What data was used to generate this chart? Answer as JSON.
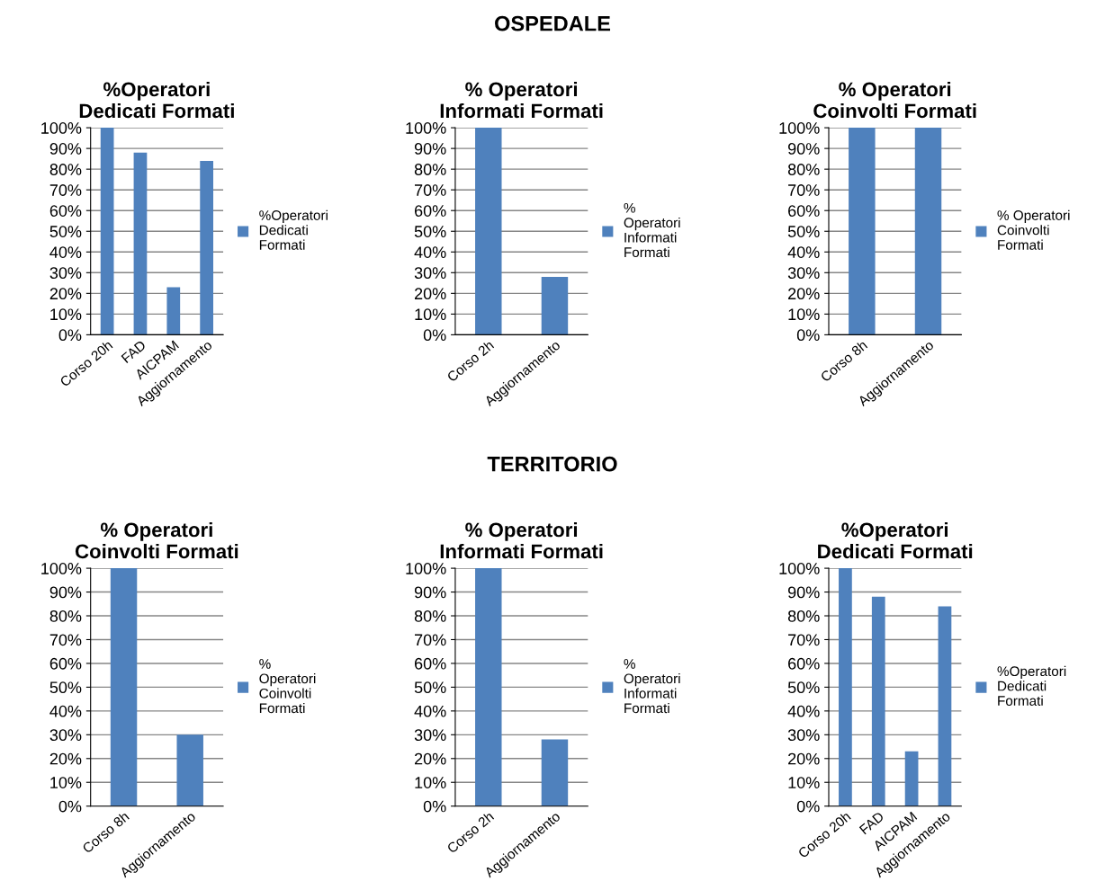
{
  "chart_data": [
    {
      "type": "bar",
      "title": "%Operatori\nDedicati Formati",
      "annotations": [
        "OSPEDALE"
      ],
      "categories": [
        "Corso 20h",
        "FAD",
        "AICPAM",
        "Aggiornamento"
      ],
      "series": [
        {
          "name": "%Operatori\nDedicati\nFormati",
          "color": "#4f81bd",
          "values": [
            100,
            88,
            23,
            84
          ]
        }
      ],
      "ylim": [
        0,
        100
      ],
      "yticks": [
        {
          "value": 0,
          "label": "0%"
        },
        {
          "value": 10,
          "label": "10%"
        },
        {
          "value": 20,
          "label": "20%"
        },
        {
          "value": 30,
          "label": "30%"
        },
        {
          "value": 40,
          "label": "40%"
        },
        {
          "value": 50,
          "label": "50%"
        },
        {
          "value": 60,
          "label": "60%"
        },
        {
          "value": 70,
          "label": "70%"
        },
        {
          "value": 80,
          "label": "80%"
        },
        {
          "value": 90,
          "label": "90%"
        },
        {
          "value": 100,
          "label": "100%"
        }
      ],
      "grid": "y",
      "legend": "right"
    },
    {
      "type": "bar",
      "title": "% Operatori\nInformati Formati",
      "categories": [
        "Corso 2h",
        "Aggiornamento"
      ],
      "series": [
        {
          "name": "%\nOperatori\nInformati\nFormati",
          "color": "#4f81bd",
          "values": [
            100,
            28
          ]
        }
      ],
      "ylim": [
        0,
        100
      ],
      "yticks": [
        {
          "value": 0,
          "label": "0%"
        },
        {
          "value": 10,
          "label": "10%"
        },
        {
          "value": 20,
          "label": "20%"
        },
        {
          "value": 30,
          "label": "30%"
        },
        {
          "value": 40,
          "label": "40%"
        },
        {
          "value": 50,
          "label": "50%"
        },
        {
          "value": 60,
          "label": "60%"
        },
        {
          "value": 70,
          "label": "70%"
        },
        {
          "value": 80,
          "label": "80%"
        },
        {
          "value": 90,
          "label": "90%"
        },
        {
          "value": 100,
          "label": "100%"
        }
      ],
      "grid": "y",
      "legend": "right"
    },
    {
      "type": "bar",
      "title": "% Operatori\nCoinvolti Formati",
      "categories": [
        "Corso 8h",
        "Aggiornamento"
      ],
      "series": [
        {
          "name": "% Operatori\nCoinvolti\nFormati",
          "color": "#4f81bd",
          "values": [
            100,
            100
          ]
        }
      ],
      "ylim": [
        0,
        100
      ],
      "yticks": [
        {
          "value": 0,
          "label": "0%"
        },
        {
          "value": 10,
          "label": "10%"
        },
        {
          "value": 20,
          "label": "20%"
        },
        {
          "value": 30,
          "label": "30%"
        },
        {
          "value": 40,
          "label": "40%"
        },
        {
          "value": 50,
          "label": "50%"
        },
        {
          "value": 60,
          "label": "60%"
        },
        {
          "value": 70,
          "label": "70%"
        },
        {
          "value": 80,
          "label": "80%"
        },
        {
          "value": 90,
          "label": "90%"
        },
        {
          "value": 100,
          "label": "100%"
        }
      ],
      "grid": "y",
      "legend": "right"
    },
    {
      "type": "bar",
      "title": "% Operatori\nCoinvolti Formati",
      "annotations": [
        "TERRITORIO"
      ],
      "categories": [
        "Corso 8h",
        "Aggiornamento"
      ],
      "series": [
        {
          "name": "%\nOperatori\nCoinvolti\nFormati",
          "color": "#4f81bd",
          "values": [
            100,
            30
          ]
        }
      ],
      "ylim": [
        0,
        100
      ],
      "yticks": [
        {
          "value": 0,
          "label": "0%"
        },
        {
          "value": 10,
          "label": "10%"
        },
        {
          "value": 20,
          "label": "20%"
        },
        {
          "value": 30,
          "label": "30%"
        },
        {
          "value": 40,
          "label": "40%"
        },
        {
          "value": 50,
          "label": "50%"
        },
        {
          "value": 60,
          "label": "60%"
        },
        {
          "value": 70,
          "label": "70%"
        },
        {
          "value": 80,
          "label": "80%"
        },
        {
          "value": 90,
          "label": "90%"
        },
        {
          "value": 100,
          "label": "100%"
        }
      ],
      "grid": "y",
      "legend": "right"
    },
    {
      "type": "bar",
      "title": "% Operatori\nInformati Formati",
      "categories": [
        "Corso 2h",
        "Aggiornamento"
      ],
      "series": [
        {
          "name": "%\nOperatori\nInformati\nFormati",
          "color": "#4f81bd",
          "values": [
            100,
            28
          ]
        }
      ],
      "ylim": [
        0,
        100
      ],
      "yticks": [
        {
          "value": 0,
          "label": "0%"
        },
        {
          "value": 10,
          "label": "10%"
        },
        {
          "value": 20,
          "label": "20%"
        },
        {
          "value": 30,
          "label": "30%"
        },
        {
          "value": 40,
          "label": "40%"
        },
        {
          "value": 50,
          "label": "50%"
        },
        {
          "value": 60,
          "label": "60%"
        },
        {
          "value": 70,
          "label": "70%"
        },
        {
          "value": 80,
          "label": "80%"
        },
        {
          "value": 90,
          "label": "90%"
        },
        {
          "value": 100,
          "label": "100%"
        }
      ],
      "grid": "y",
      "legend": "right"
    },
    {
      "type": "bar",
      "title": "%Operatori\nDedicati Formati",
      "categories": [
        "Corso 20h",
        "FAD",
        "AICPAM",
        "Aggiornamento"
      ],
      "series": [
        {
          "name": "%Operatori\nDedicati\nFormati",
          "color": "#4f81bd",
          "values": [
            100,
            88,
            23,
            84
          ]
        }
      ],
      "ylim": [
        0,
        100
      ],
      "yticks": [
        {
          "value": 0,
          "label": "0%"
        },
        {
          "value": 10,
          "label": "10%"
        },
        {
          "value": 20,
          "label": "20%"
        },
        {
          "value": 30,
          "label": "30%"
        },
        {
          "value": 40,
          "label": "40%"
        },
        {
          "value": 50,
          "label": "50%"
        },
        {
          "value": 60,
          "label": "60%"
        },
        {
          "value": 70,
          "label": "70%"
        },
        {
          "value": 80,
          "label": "80%"
        },
        {
          "value": 90,
          "label": "90%"
        },
        {
          "value": 100,
          "label": "100%"
        }
      ],
      "grid": "y",
      "legend": "right"
    }
  ]
}
